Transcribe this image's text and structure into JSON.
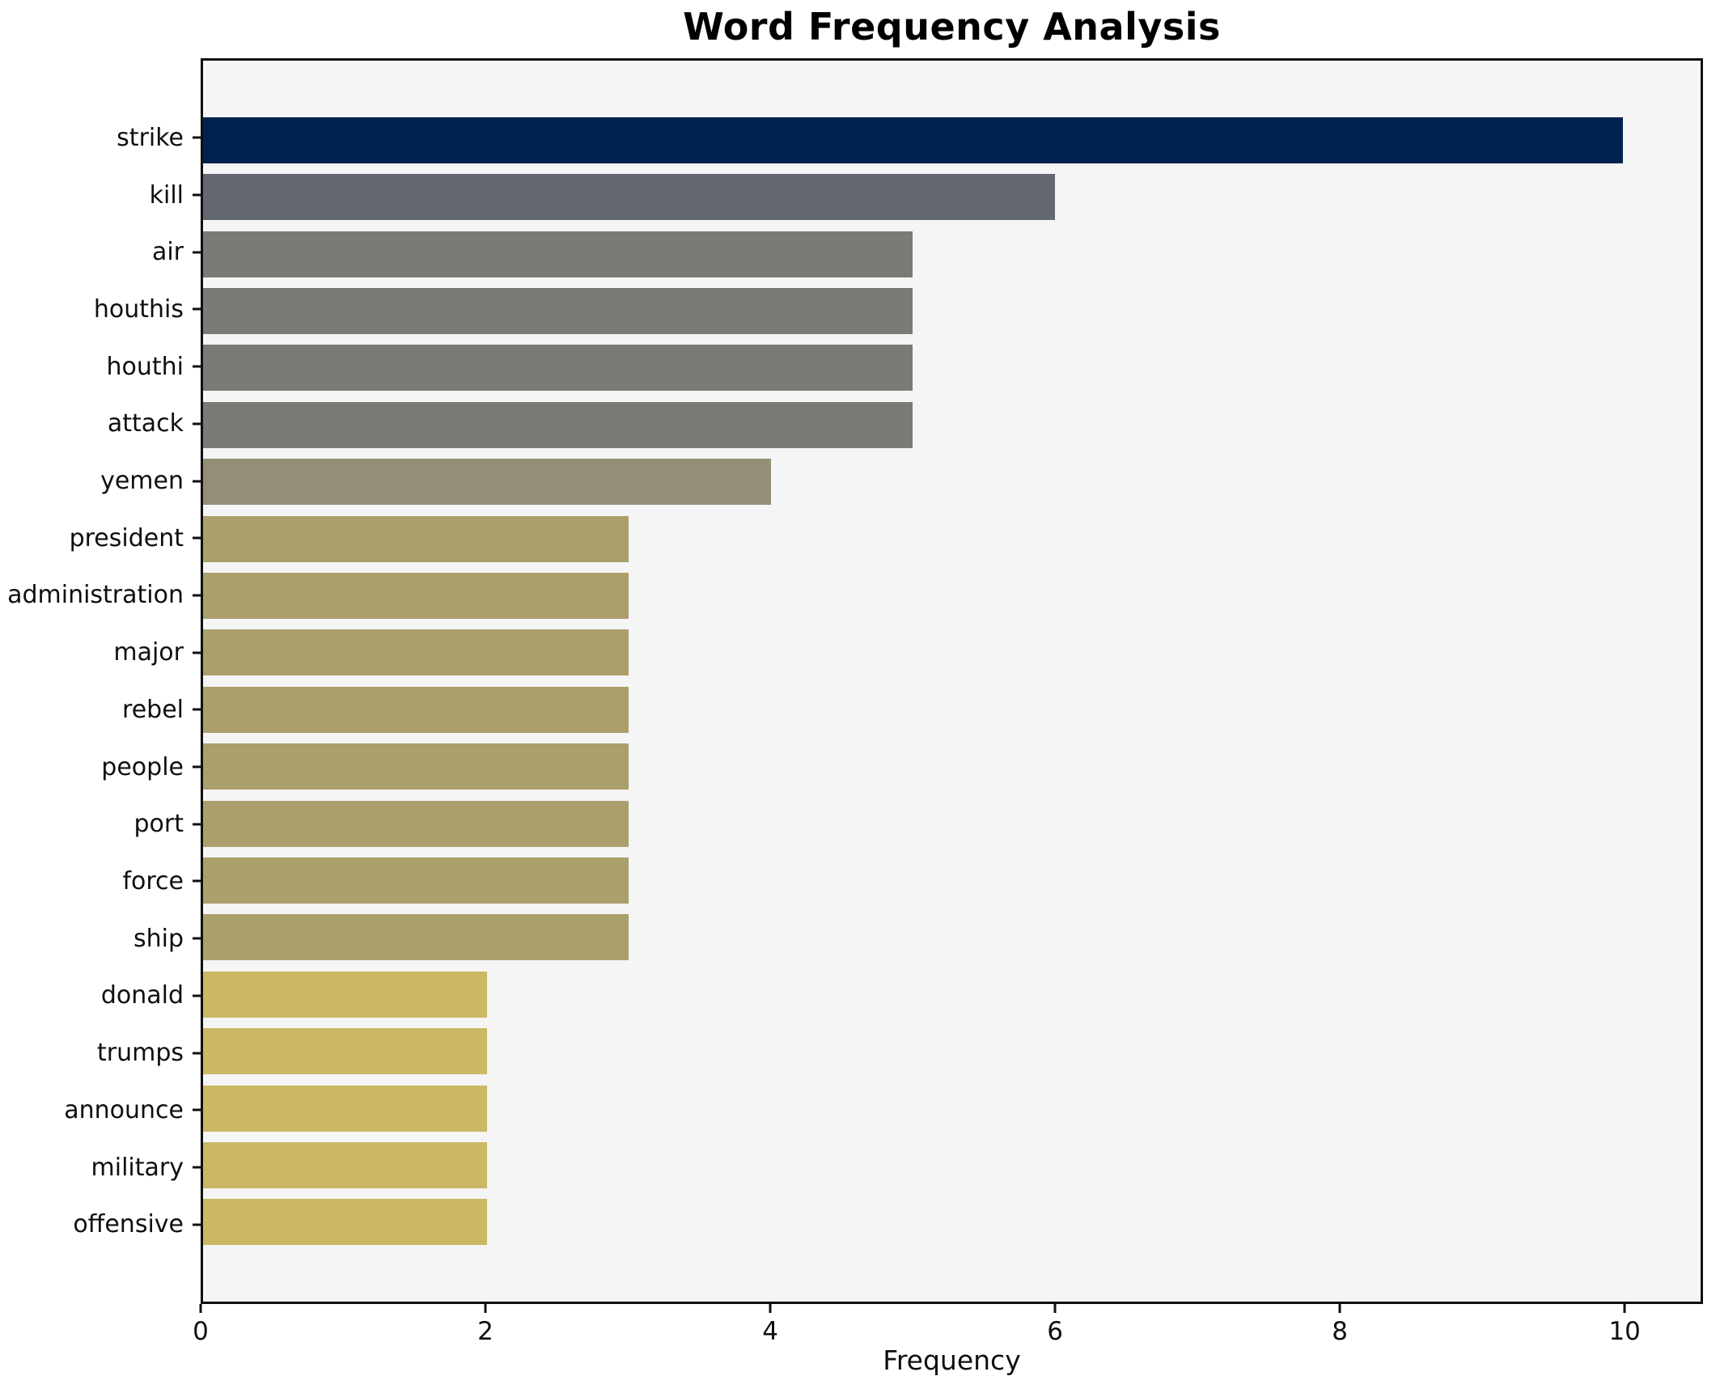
{
  "chart_data": {
    "type": "bar",
    "orientation": "horizontal",
    "title": "Word Frequency Analysis",
    "xlabel": "Frequency",
    "ylabel": "",
    "categories": [
      "strike",
      "kill",
      "air",
      "houthis",
      "houthi",
      "attack",
      "yemen",
      "president",
      "administration",
      "major",
      "rebel",
      "people",
      "port",
      "force",
      "ship",
      "donald",
      "trumps",
      "announce",
      "military",
      "offensive"
    ],
    "values": [
      10,
      6,
      5,
      5,
      5,
      5,
      4,
      3,
      3,
      3,
      3,
      3,
      3,
      3,
      3,
      2,
      2,
      2,
      2,
      2
    ],
    "bar_colors": [
      "#00224e",
      "#646870",
      "#7b7a77",
      "#7b7a77",
      "#7b7a77",
      "#7b7a77",
      "#948e77",
      "#ab9f6c",
      "#ab9f6c",
      "#ab9f6c",
      "#ab9f6c",
      "#ab9f6c",
      "#ab9f6c",
      "#ab9f6c",
      "#ab9f6c",
      "#cab863",
      "#cab863",
      "#cab863",
      "#cab863",
      "#cab863"
    ],
    "x_ticks": [
      0,
      2,
      4,
      6,
      8,
      10
    ],
    "xlim": [
      0,
      10.55
    ],
    "grid": false,
    "legend_position": "none",
    "plot_background": "#f5f5f6",
    "figure_background": "#ffffff",
    "axis_color": "#0f0f0f"
  }
}
